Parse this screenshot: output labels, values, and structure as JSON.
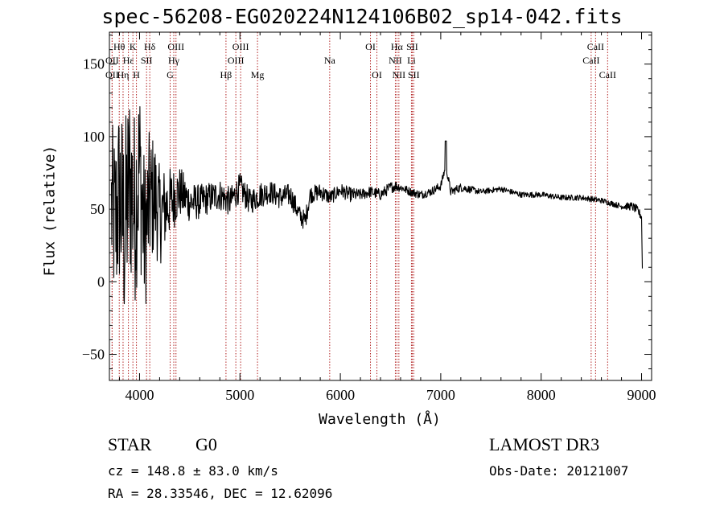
{
  "chart_data": {
    "type": "line",
    "title": "spec-56208-EG020224N124106B02_sp14-042.fits",
    "xlabel": "Wavelength (Å)",
    "ylabel": "Flux (relative)",
    "xlim": [
      3700,
      9100
    ],
    "ylim": [
      -68,
      172
    ],
    "xticks": [
      4000,
      5000,
      6000,
      7000,
      8000,
      9000
    ],
    "yticks": [
      -50,
      0,
      50,
      100,
      150
    ],
    "series": [
      {
        "name": "flux",
        "x": [
          3720,
          3760,
          3800,
          3850,
          3900,
          3950,
          4000,
          4050,
          4100,
          4150,
          4200,
          4300,
          4400,
          4500,
          4600,
          4700,
          4800,
          4900,
          5000,
          5100,
          5200,
          5300,
          5400,
          5500,
          5600,
          5650,
          5700,
          5800,
          5900,
          6000,
          6100,
          6200,
          6300,
          6400,
          6500,
          6550,
          6600,
          6700,
          6800,
          6900,
          7000,
          7050,
          7100,
          7200,
          7400,
          7600,
          7800,
          8000,
          8200,
          8400,
          8600,
          8800,
          8900,
          8950,
          9000,
          9010
        ],
        "y": [
          50,
          40,
          60,
          35,
          70,
          50,
          80,
          30,
          55,
          60,
          45,
          55,
          62,
          55,
          55,
          58,
          60,
          55,
          65,
          55,
          60,
          62,
          58,
          60,
          45,
          42,
          60,
          62,
          58,
          63,
          60,
          60,
          62,
          60,
          65,
          66,
          65,
          62,
          60,
          62,
          66,
          80,
          62,
          65,
          62,
          64,
          60,
          60,
          58,
          58,
          56,
          52,
          52,
          50,
          45,
          0
        ],
        "noise": [
          60,
          65,
          70,
          75,
          70,
          70,
          65,
          55,
          50,
          42,
          35,
          24,
          18,
          14,
          12,
          11,
          11,
          10,
          10,
          9,
          9,
          8,
          8,
          8,
          7,
          7,
          6,
          6,
          5,
          5,
          5,
          4,
          4,
          4,
          4,
          4,
          3,
          3,
          3,
          3,
          3,
          3,
          3,
          3,
          2,
          2,
          2,
          2,
          2,
          2,
          2,
          2,
          3,
          3,
          3,
          0
        ]
      }
    ],
    "lines": [
      {
        "label": "Hθ",
        "x": 3798,
        "row": 1
      },
      {
        "label": "OII",
        "x": 3727,
        "row": 2
      },
      {
        "label": "OII",
        "x": 3727,
        "row": 3
      },
      {
        "label": "Hη",
        "x": 3836,
        "row": 3
      },
      {
        "label": "K",
        "x": 3934,
        "row": 1
      },
      {
        "label": "H",
        "x": 3969,
        "row": 3
      },
      {
        "label": "Hε",
        "x": 3889,
        "row": 2
      },
      {
        "label": "Hδ",
        "x": 4102,
        "row": 1
      },
      {
        "label": "SII",
        "x": 4070,
        "row": 2
      },
      {
        "label": "OIII",
        "x": 4363,
        "row": 1
      },
      {
        "label": "Hγ",
        "x": 4341,
        "row": 2
      },
      {
        "label": "G",
        "x": 4305,
        "row": 3
      },
      {
        "label": "OIII",
        "x": 5007,
        "row": 1
      },
      {
        "label": "OIII",
        "x": 4959,
        "row": 2
      },
      {
        "label": "Hβ",
        "x": 4861,
        "row": 3
      },
      {
        "label": "Mg",
        "x": 5175,
        "row": 3
      },
      {
        "label": "Na",
        "x": 5894,
        "row": 2
      },
      {
        "label": "OI",
        "x": 6300,
        "row": 1
      },
      {
        "label": "OI",
        "x": 6364,
        "row": 3
      },
      {
        "label": "Hα",
        "x": 6563,
        "row": 1
      },
      {
        "label": "NII",
        "x": 6548,
        "row": 2
      },
      {
        "label": "NII",
        "x": 6583,
        "row": 3
      },
      {
        "label": "SII",
        "x": 6716,
        "row": 1
      },
      {
        "label": "Li",
        "x": 6708,
        "row": 2
      },
      {
        "label": "SII",
        "x": 6731,
        "row": 3
      },
      {
        "label": "CaII",
        "x": 8542,
        "row": 1
      },
      {
        "label": "CaII",
        "x": 8498,
        "row": 2
      },
      {
        "label": "CaII",
        "x": 8662,
        "row": 3
      }
    ]
  },
  "info": {
    "class": "STAR",
    "subclass": "G0",
    "survey": "LAMOST DR3",
    "cz": "cz = 148.8 ± 83.0 km/s",
    "obs_date": "Obs-Date: 20121007",
    "radec": "RA =  28.33546, DEC =  12.62096"
  }
}
